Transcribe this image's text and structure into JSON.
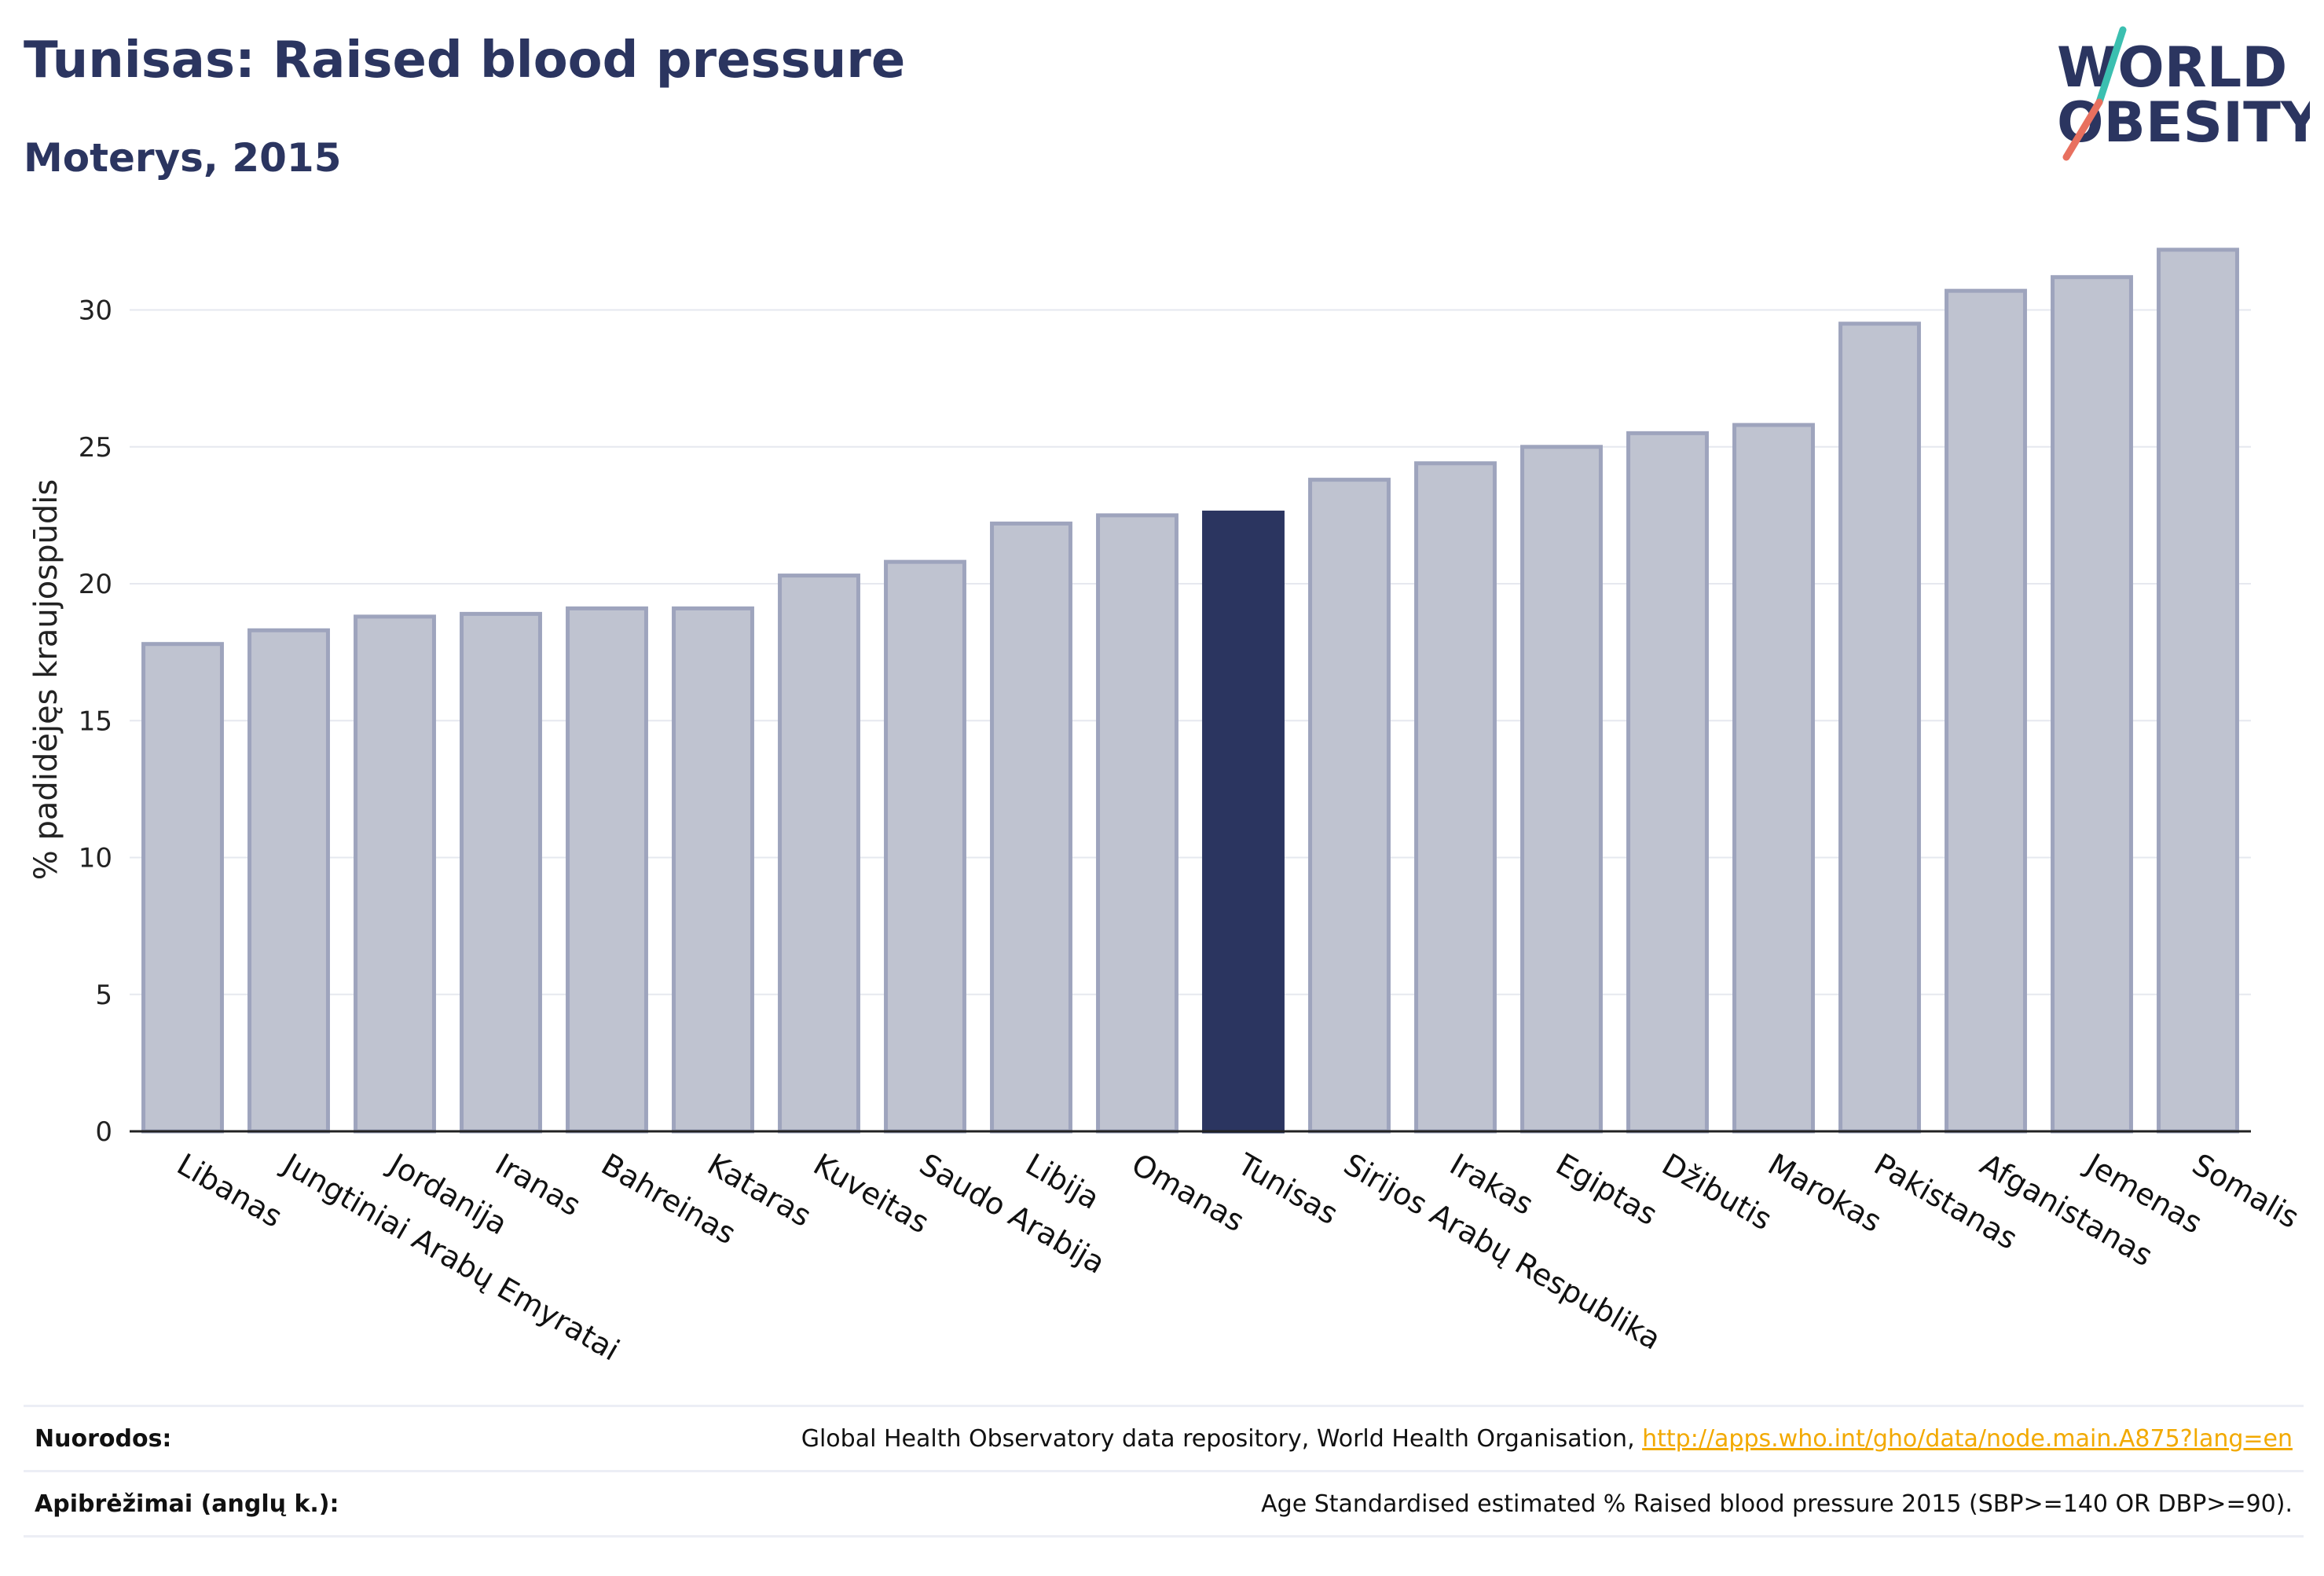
{
  "header": {
    "title": "Tunisas: Raised blood pressure",
    "subtitle": "Moterys, 2015"
  },
  "logo": {
    "line1": "WORLD",
    "line2": "OBESITY"
  },
  "colors": {
    "bar": "#bfc3d0",
    "bar_edge": "#9ea4bd",
    "highlight": "#2b3560",
    "grid": "#e6e8ef"
  },
  "chart_data": {
    "type": "bar",
    "ylabel": "% padidėjęs kraujospūdis",
    "ylim": [
      0,
      33
    ],
    "yticks": [
      0,
      5,
      10,
      15,
      20,
      25,
      30
    ],
    "grid": true,
    "highlight": "Tunisas",
    "categories": [
      "Libanas",
      "Jungtiniai Arabų Emyratai",
      "Jordanija",
      "Iranas",
      "Bahreinas",
      "Kataras",
      "Kuveitas",
      "Saudo Arabija",
      "Libija",
      "Omanas",
      "Tunisas",
      "Sirijos Arabų Respublika",
      "Irakas",
      "Egiptas",
      "Džibutis",
      "Marokas",
      "Pakistanas",
      "Afganistanas",
      "Jemenas",
      "Somalis"
    ],
    "values": [
      17.8,
      18.3,
      18.8,
      18.9,
      19.1,
      19.1,
      20.3,
      20.8,
      22.2,
      22.5,
      22.6,
      23.8,
      24.4,
      25.0,
      25.5,
      25.8,
      29.5,
      30.7,
      31.2,
      32.2
    ]
  },
  "footer": {
    "sources_label": "Nuorodos:",
    "sources_text": "Global Health Observatory data repository, World Health Organisation, ",
    "sources_link": "http://apps.who.int/gho/data/node.main.A875?lang=en",
    "definitions_label": "Apibrėžimai (anglų k.):",
    "definitions_text": "Age Standardised estimated % Raised blood pressure 2015 (SBP>=140 OR DBP>=90)."
  }
}
